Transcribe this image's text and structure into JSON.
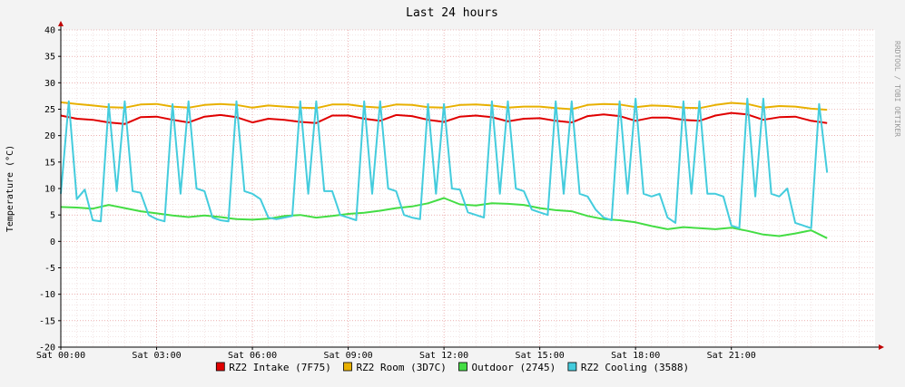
{
  "chart_data": {
    "type": "line",
    "title": "Last 24 hours",
    "ylabel": "Temperature (°C)",
    "watermark": "RRDTOOL / TOBI OETIKER",
    "ylim": [
      -20,
      40
    ],
    "yticks": [
      40,
      35,
      30,
      25,
      20,
      15,
      10,
      5,
      0,
      -5,
      -10,
      -15,
      -20
    ],
    "xlim": [
      0,
      25.5
    ],
    "xticks": [
      {
        "h": 0,
        "label": "Sat 00:00"
      },
      {
        "h": 3,
        "label": "Sat 03:00"
      },
      {
        "h": 6,
        "label": "Sat 06:00"
      },
      {
        "h": 9,
        "label": "Sat 09:00"
      },
      {
        "h": 12,
        "label": "Sat 12:00"
      },
      {
        "h": 15,
        "label": "Sat 15:00"
      },
      {
        "h": 18,
        "label": "Sat 18:00"
      },
      {
        "h": 21,
        "label": "Sat 21:00"
      }
    ],
    "grid": true,
    "legend_position": "bottom",
    "series": [
      {
        "name": "RZ2 Intake (7F75)",
        "color": "#e00000",
        "x": [
          0,
          0.5,
          1,
          1.5,
          2,
          2.5,
          3,
          3.5,
          4,
          4.5,
          5,
          5.5,
          6,
          6.5,
          7,
          7.5,
          8,
          8.5,
          9,
          9.5,
          10,
          10.5,
          11,
          11.5,
          12,
          12.5,
          13,
          13.5,
          14,
          14.5,
          15,
          15.5,
          16,
          16.5,
          17,
          17.5,
          18,
          18.5,
          19,
          19.5,
          20,
          20.5,
          21,
          21.5,
          22,
          22.5,
          23,
          23.5,
          24
        ],
        "y": [
          23.8,
          23.2,
          23.0,
          22.5,
          22.2,
          23.5,
          23.6,
          23.0,
          22.5,
          23.6,
          23.9,
          23.5,
          22.5,
          23.2,
          23.0,
          22.6,
          22.4,
          23.8,
          23.8,
          23.2,
          22.8,
          23.9,
          23.7,
          23.0,
          22.6,
          23.6,
          23.8,
          23.5,
          22.7,
          23.2,
          23.3,
          22.8,
          22.5,
          23.7,
          24.0,
          23.7,
          22.8,
          23.4,
          23.4,
          23.0,
          22.8,
          23.8,
          24.3,
          24.0,
          23.0,
          23.5,
          23.6,
          22.8,
          22.4
        ]
      },
      {
        "name": "RZ2 Room (3D7C)",
        "color": "#e8b000",
        "x": [
          0,
          0.5,
          1,
          1.5,
          2,
          2.5,
          3,
          3.5,
          4,
          4.5,
          5,
          5.5,
          6,
          6.5,
          7,
          7.5,
          8,
          8.5,
          9,
          9.5,
          10,
          10.5,
          11,
          11.5,
          12,
          12.5,
          13,
          13.5,
          14,
          14.5,
          15,
          15.5,
          16,
          16.5,
          17,
          17.5,
          18,
          18.5,
          19,
          19.5,
          20,
          20.5,
          21,
          21.5,
          22,
          22.5,
          23,
          23.5,
          24
        ],
        "y": [
          26.3,
          26.0,
          25.7,
          25.4,
          25.3,
          25.9,
          26.0,
          25.5,
          25.3,
          25.8,
          26.0,
          25.8,
          25.3,
          25.7,
          25.5,
          25.3,
          25.2,
          25.9,
          25.9,
          25.5,
          25.3,
          25.9,
          25.8,
          25.4,
          25.3,
          25.8,
          25.9,
          25.7,
          25.3,
          25.5,
          25.5,
          25.2,
          25.0,
          25.8,
          26.0,
          25.9,
          25.4,
          25.7,
          25.6,
          25.3,
          25.2,
          25.8,
          26.2,
          26.0,
          25.3,
          25.6,
          25.5,
          25.1,
          24.9
        ]
      },
      {
        "name": "Outdoor (2745)",
        "color": "#44dd44",
        "x": [
          0,
          0.5,
          1,
          1.5,
          2,
          2.5,
          3,
          3.5,
          4,
          4.5,
          5,
          5.5,
          6,
          6.5,
          7,
          7.5,
          8,
          8.5,
          9,
          9.5,
          10,
          10.5,
          11,
          11.5,
          12,
          12.5,
          13,
          13.5,
          14,
          14.5,
          15,
          15.5,
          16,
          16.5,
          17,
          17.5,
          18,
          18.5,
          19,
          19.5,
          20,
          20.5,
          21,
          21.5,
          22,
          22.5,
          23,
          23.5,
          24
        ],
        "y": [
          6.5,
          6.4,
          6.2,
          6.9,
          6.3,
          5.7,
          5.3,
          4.9,
          4.6,
          4.9,
          4.6,
          4.2,
          4.1,
          4.3,
          4.8,
          5.0,
          4.5,
          4.8,
          5.2,
          5.4,
          5.8,
          6.3,
          6.6,
          7.2,
          8.2,
          7.0,
          6.8,
          7.2,
          7.1,
          6.9,
          6.3,
          5.9,
          5.7,
          4.8,
          4.2,
          4.0,
          3.6,
          2.9,
          2.3,
          2.7,
          2.5,
          2.3,
          2.6,
          2.0,
          1.3,
          1.0,
          1.5,
          2.1,
          0.6
        ]
      },
      {
        "name": "RZ2 Cooling (3588)",
        "color": "#44ccdd",
        "x": [
          0,
          0.25,
          0.5,
          0.75,
          1,
          1.25,
          1.5,
          1.75,
          2,
          2.25,
          2.5,
          2.75,
          3,
          3.25,
          3.5,
          3.75,
          4,
          4.25,
          4.5,
          4.75,
          5,
          5.25,
          5.5,
          5.75,
          6,
          6.25,
          6.5,
          6.75,
          7,
          7.25,
          7.5,
          7.75,
          8,
          8.25,
          8.5,
          8.75,
          9,
          9.25,
          9.5,
          9.75,
          10,
          10.25,
          10.5,
          10.75,
          11,
          11.25,
          11.5,
          11.75,
          12,
          12.25,
          12.5,
          12.75,
          13,
          13.25,
          13.5,
          13.75,
          14,
          14.25,
          14.5,
          14.75,
          15,
          15.25,
          15.5,
          15.75,
          16,
          16.25,
          16.5,
          16.75,
          17,
          17.25,
          17.5,
          17.75,
          18,
          18.25,
          18.5,
          18.75,
          19,
          19.25,
          19.5,
          19.75,
          20,
          20.25,
          20.5,
          20.75,
          21,
          21.25,
          21.5,
          21.75,
          22,
          22.25,
          22.5,
          22.75,
          23,
          23.25,
          23.5,
          23.75,
          24
        ],
        "y": [
          9.0,
          26.5,
          8.0,
          9.8,
          4.0,
          3.8,
          26.0,
          9.5,
          26.5,
          9.5,
          9.2,
          5.0,
          4.2,
          3.8,
          26.0,
          9.0,
          26.5,
          10.0,
          9.5,
          4.5,
          4.0,
          3.8,
          26.5,
          9.5,
          9.0,
          8.0,
          4.5,
          4.2,
          4.5,
          4.8,
          26.5,
          9.0,
          26.5,
          9.5,
          9.5,
          5.0,
          4.5,
          4.0,
          26.5,
          9.0,
          26.5,
          10.0,
          9.5,
          5.0,
          4.5,
          4.2,
          26.0,
          9.0,
          26.0,
          10.0,
          9.8,
          5.5,
          5.0,
          4.5,
          26.5,
          9.0,
          26.5,
          10.0,
          9.5,
          6.0,
          5.5,
          5.0,
          26.5,
          9.0,
          26.5,
          9.0,
          8.5,
          6.0,
          4.5,
          4.0,
          26.5,
          9.0,
          27.0,
          9.0,
          8.5,
          9.0,
          4.5,
          3.5,
          26.5,
          9.0,
          26.5,
          9.0,
          9.0,
          8.5,
          3.0,
          2.5,
          27.0,
          8.5,
          27.0,
          9.0,
          8.5,
          10.0,
          3.5,
          3.0,
          2.5,
          26.0,
          13.0
        ]
      }
    ]
  }
}
